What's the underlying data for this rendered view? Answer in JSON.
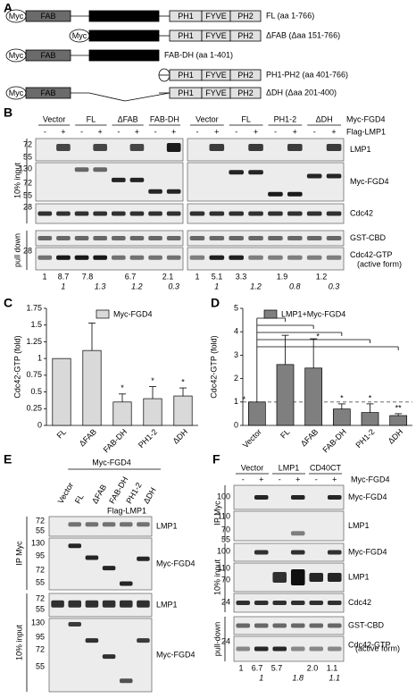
{
  "letters": [
    "A",
    "B",
    "C",
    "D",
    "E",
    "F"
  ],
  "panel_a": {
    "domains": [
      "Myc",
      "FAB",
      "DH",
      "PH1",
      "FYVE",
      "PH2"
    ],
    "constructs": [
      "FL (aa 1-766)",
      "ΔFAB (Δaa 151-766)",
      "FAB-DH (aa 1-401)",
      "PH1-PH2 (aa 401-766)",
      "ΔDH (Δaa 201-400)"
    ]
  },
  "panel_b": {
    "groups_left": [
      "Vector",
      "FL",
      "ΔFAB",
      "FAB-DH"
    ],
    "groups_right": [
      "Vector",
      "FL",
      "PH1-2",
      "ΔDH"
    ],
    "row_labels": [
      "Myc-FGD4",
      "Flag-LMP1"
    ],
    "signs": [
      "-",
      "+"
    ],
    "sections": [
      "10% input",
      "pull down"
    ],
    "blots": [
      "LMP1",
      "Myc-FGD4",
      "Cdc42",
      "GST-CBD",
      "Cdc42-GTP"
    ],
    "blot_note": "(active form)",
    "markers": [
      "72",
      "55",
      "130",
      "72",
      "55",
      "28",
      "28"
    ],
    "quant_left": [
      "1",
      "8.7",
      "7.8",
      "6.7",
      "2.1"
    ],
    "ratio_left": [
      "1",
      "1.3",
      "1.2",
      "0.3"
    ],
    "quant_right": [
      "1",
      "5.1",
      "3.3",
      "1.9",
      "1.2"
    ],
    "ratio_right": [
      "1",
      "1.2",
      "0.8",
      "0.3"
    ]
  },
  "chart_data": [
    {
      "type": "bar",
      "ylabel": "Cdc42-GTP (fold)",
      "categories": [
        "FL",
        "ΔFAB",
        "FAB-DH",
        "PH1-2",
        "ΔDH"
      ],
      "series": [
        {
          "name": "Myc-FGD4",
          "color": "#d9d9d9",
          "values": [
            1,
            1.12,
            0.35,
            0.4,
            0.44
          ],
          "errors": [
            null,
            0.41,
            0.12,
            0.18,
            0.12
          ]
        }
      ],
      "significance": [
        null,
        null,
        "*",
        "*",
        "*"
      ],
      "ylim": [
        0,
        1.75
      ],
      "yticks": [
        0,
        0.25,
        0.5,
        0.75,
        1,
        1.25,
        1.5,
        1.75
      ]
    },
    {
      "type": "bar",
      "ylabel": "Cdc42-GTP (fold)",
      "categories": [
        "Vector",
        "FL",
        "ΔFAB",
        "FAB-DH",
        "PH1-2",
        "ΔDH"
      ],
      "series": [
        {
          "name": "LMP1+Myc-FGD4",
          "color": "#7f7f7f",
          "values": [
            1,
            2.6,
            2.45,
            0.7,
            0.55,
            0.42
          ],
          "errors": [
            null,
            1.25,
            1.25,
            0.22,
            0.37,
            0.08
          ]
        }
      ],
      "significance": [
        "*",
        null,
        "*",
        "*",
        "*",
        "**"
      ],
      "reference_line": 1,
      "ylim": [
        0,
        5
      ],
      "yticks": [
        0,
        1,
        2,
        3,
        4,
        5
      ]
    }
  ],
  "panel_e": {
    "header": "Myc-FGD4",
    "lanes": [
      "Vector",
      "FL",
      "ΔFAB",
      "FAB-DH",
      "PH1-2",
      "ΔDH"
    ],
    "row_label": "Flag-LMP1",
    "sections": [
      "IP Myc",
      "10% input"
    ],
    "blots": [
      "LMP1",
      "Myc-FGD4",
      "LMP1",
      "Myc-FGD4"
    ],
    "markers": [
      "72",
      "55",
      "130",
      "95",
      "72",
      "55",
      "72",
      "55",
      "130",
      "95",
      "72",
      "55"
    ]
  },
  "panel_f": {
    "groups": [
      "Vector",
      "LMP1",
      "CD40CT"
    ],
    "row_label": "Myc-FGD4",
    "signs": [
      "-",
      "+"
    ],
    "sections": [
      "IP Myc",
      "10% input",
      "pull-down"
    ],
    "blots": [
      "Myc-FGD4",
      "LMP1",
      "Myc-FGD4",
      "LMP1",
      "Cdc42",
      "GST-CBD",
      "Cdc42-GTP"
    ],
    "blot_note": "(active form)",
    "markers": [
      "100",
      "110",
      "70",
      "55",
      "100",
      "110",
      "70",
      "24",
      "24"
    ],
    "quant": [
      "1",
      "6.7",
      "5.7",
      "2.0",
      "1.1"
    ],
    "ratio": [
      "1",
      "1.8",
      "1.1"
    ]
  }
}
